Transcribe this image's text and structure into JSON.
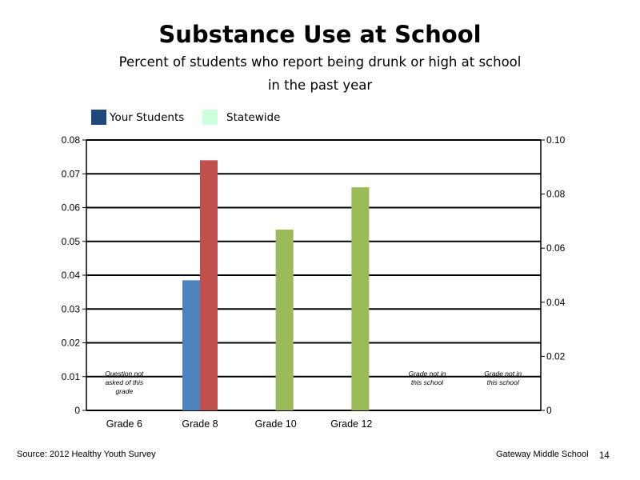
{
  "title": "Substance Use at School",
  "subtitle": [
    "Percent of students who report being drunk or high at school",
    "in the past year"
  ],
  "legend": [
    {
      "label": "Your Students",
      "color": "#1F497D"
    },
    {
      "label": "Statewide",
      "color": "#CCFFDD"
    }
  ],
  "footer": {
    "source": "Source: 2012 Healthy Youth Survey",
    "school": "Gateway Middle  School",
    "page": "14"
  },
  "chart_data": {
    "type": "bar",
    "categories": [
      "Grade 6",
      "Grade 8",
      "Grade 10",
      "Grade 12",
      "",
      ""
    ],
    "series": [
      {
        "values": [
          null,
          0.0385,
          null,
          null,
          null,
          null
        ]
      },
      {
        "values": [
          null,
          0.074,
          0.0535,
          0.066,
          null,
          null
        ]
      }
    ],
    "bar_colors": {
      "Grade 8": [
        "#4F81BD",
        "#C0504D"
      ],
      "Grade 10": [
        null,
        "#9BBB59"
      ],
      "Grade 12": [
        null,
        "#9BBB59"
      ]
    },
    "ylim": [
      0,
      0.08
    ],
    "yticks": [
      "0",
      "0.01",
      "0.02",
      "0.03",
      "0.04",
      "0.05",
      "0.06",
      "0.07",
      "0.08"
    ],
    "ylim_right": [
      0,
      0.1
    ],
    "yticks_right": [
      "0",
      "0.02",
      "0.04",
      "0.06",
      "0.08",
      "0.10"
    ],
    "grid": true,
    "annotations": [
      {
        "category": 0,
        "lines": [
          "Question not",
          "asked of this",
          "grade"
        ]
      },
      {
        "category": 4,
        "lines": [
          "Grade not in",
          "this school"
        ]
      },
      {
        "category": 5,
        "lines": [
          "Grade not in",
          "this school"
        ]
      }
    ]
  }
}
